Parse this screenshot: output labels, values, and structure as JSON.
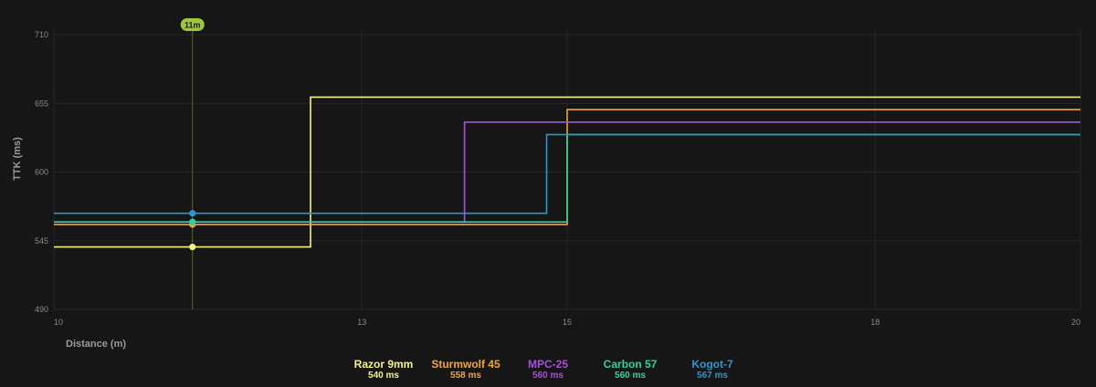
{
  "chart_data": {
    "type": "line",
    "step": true,
    "xlabel": "Distance (m)",
    "ylabel": "TTK (ms)",
    "xlim": [
      10,
      20
    ],
    "ylim": [
      490,
      710
    ],
    "x_ticks": [
      10,
      13,
      15,
      18,
      20
    ],
    "y_ticks": [
      490,
      545,
      600,
      655,
      710
    ],
    "grid": true,
    "marker": {
      "x": 11.35,
      "label": "11m"
    },
    "series": [
      {
        "name": "Razor 9mm",
        "color": "#f3f383",
        "display": "540 ms",
        "points": [
          [
            10,
            540
          ],
          [
            12.5,
            540
          ],
          [
            12.5,
            660
          ],
          [
            20,
            660
          ]
        ]
      },
      {
        "name": "Sturmwolf 45",
        "color": "#f0a63a",
        "display": "558 ms",
        "points": [
          [
            10,
            558
          ],
          [
            15,
            558
          ],
          [
            15,
            650
          ],
          [
            20,
            650
          ]
        ]
      },
      {
        "name": "MPC-25",
        "color": "#a84fe0",
        "display": "560 ms",
        "points": [
          [
            10,
            560
          ],
          [
            14,
            560
          ],
          [
            14,
            640
          ],
          [
            20,
            640
          ]
        ]
      },
      {
        "name": "Carbon 57",
        "color": "#2fd39a",
        "display": "560 ms",
        "points": [
          [
            10,
            560
          ],
          [
            15,
            560
          ],
          [
            15,
            630
          ],
          [
            20,
            630
          ]
        ]
      },
      {
        "name": "Kogot-7",
        "color": "#2a97d0",
        "display": "567 ms",
        "points": [
          [
            10,
            567
          ],
          [
            14.8,
            567
          ],
          [
            14.8,
            630
          ],
          [
            20,
            630
          ]
        ]
      }
    ]
  }
}
